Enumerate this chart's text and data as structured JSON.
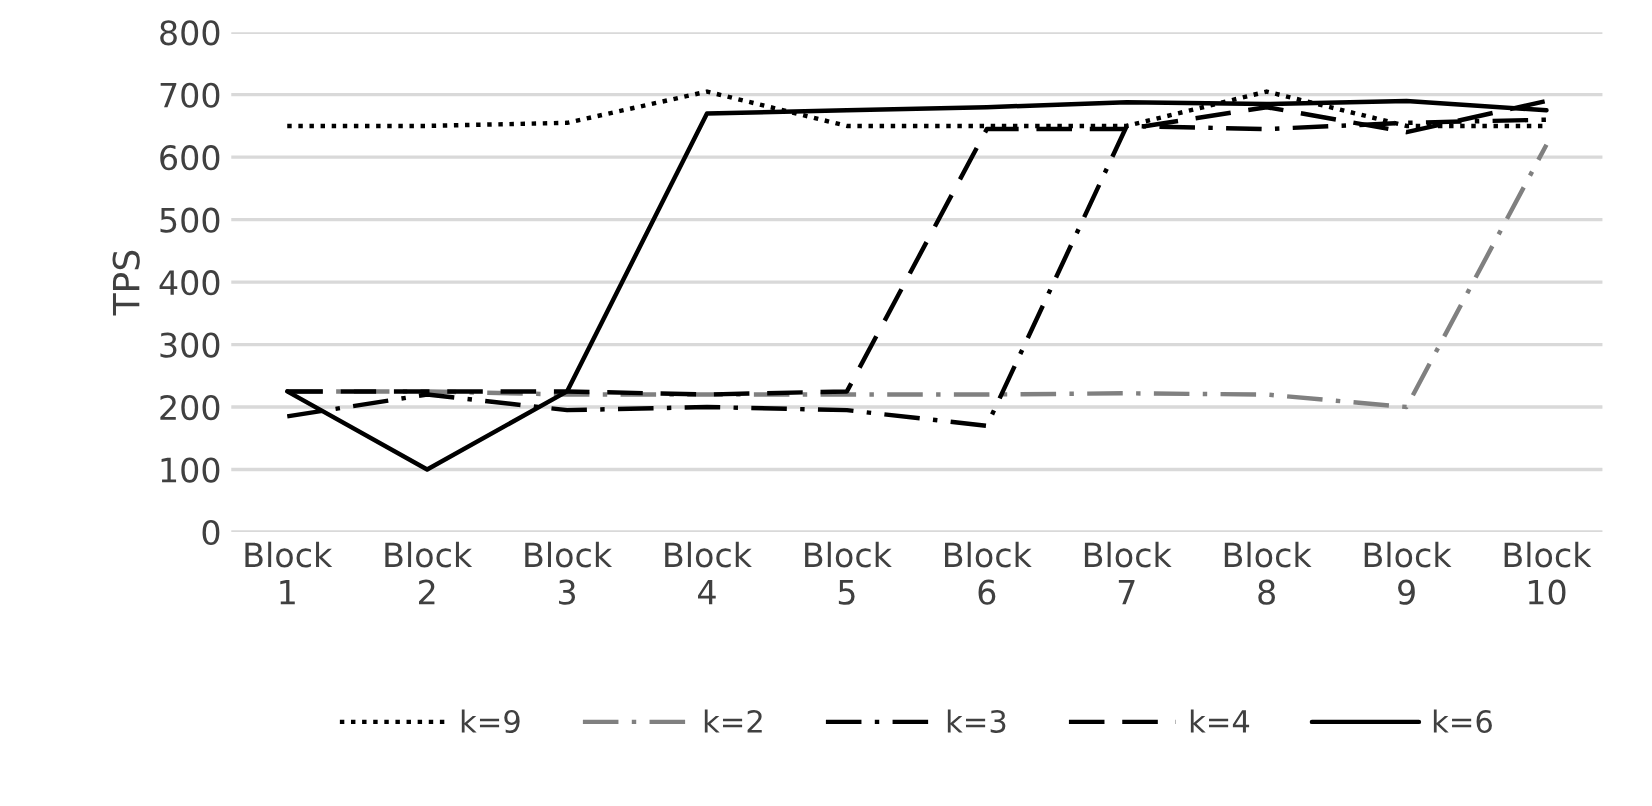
{
  "chart_data": {
    "type": "line",
    "ylabel": "TPS",
    "categories": [
      "Block\n1",
      "Block\n2",
      "Block\n3",
      "Block\n4",
      "Block\n5",
      "Block\n6",
      "Block\n7",
      "Block\n8",
      "Block\n9",
      "Block\n10"
    ],
    "series": [
      {
        "name": "k=9",
        "color": "#000000",
        "line_style": "dotted",
        "values": [
          650,
          650,
          655,
          705,
          650,
          650,
          650,
          705,
          650,
          650
        ]
      },
      {
        "name": "k=2",
        "color": "#808080",
        "line_style": "dashdot",
        "values": [
          225,
          225,
          220,
          220,
          220,
          220,
          222,
          220,
          200,
          620
        ]
      },
      {
        "name": "k=3",
        "color": "#000000",
        "line_style": "dashdot",
        "values": [
          185,
          220,
          195,
          200,
          195,
          170,
          650,
          645,
          655,
          660
        ]
      },
      {
        "name": "k=4",
        "color": "#000000",
        "line_style": "dashed",
        "values": [
          225,
          225,
          225,
          220,
          225,
          645,
          645,
          680,
          640,
          690
        ]
      },
      {
        "name": "k=6",
        "color": "#000000",
        "line_style": "solid",
        "values": [
          225,
          100,
          225,
          670,
          675,
          680,
          688,
          685,
          690,
          675
        ]
      }
    ],
    "ylim": [
      0,
      800
    ],
    "yticks": [
      0,
      100,
      200,
      300,
      400,
      500,
      600,
      700,
      800
    ],
    "grid": "y",
    "legend": "bottom",
    "marker": "none"
  }
}
